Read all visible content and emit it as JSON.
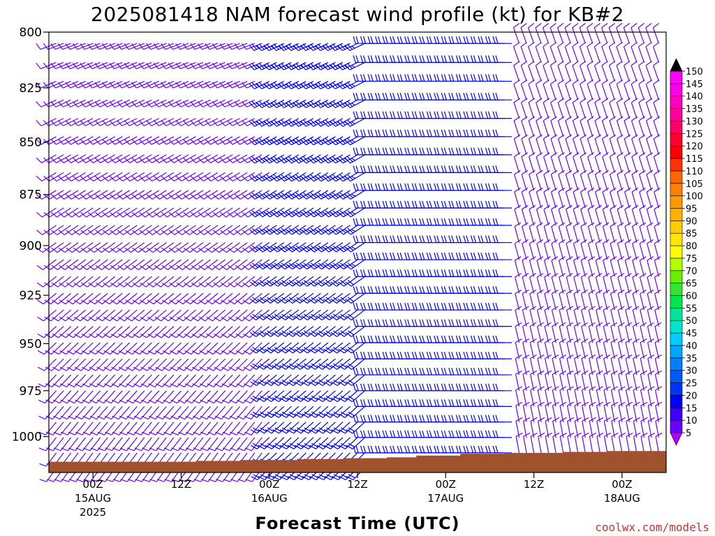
{
  "chart_data": {
    "type": "wind-barb-profile",
    "title": "2025081418 NAM forecast wind profile (kt) for KB#2",
    "xlabel": "Forecast Time (UTC)",
    "ylabel": "",
    "y_ticks": [
      800,
      825,
      850,
      875,
      900,
      925,
      950,
      975,
      1000
    ],
    "ylim": [
      800,
      1020
    ],
    "x_ticks": [
      {
        "hour": 6,
        "label": "00Z",
        "sub": "15AUG",
        "sub2": "2025"
      },
      {
        "hour": 18,
        "label": "12Z",
        "sub": "",
        "sub2": ""
      },
      {
        "hour": 30,
        "label": "00Z",
        "sub": "16AUG",
        "sub2": ""
      },
      {
        "hour": 42,
        "label": "12Z",
        "sub": "",
        "sub2": ""
      },
      {
        "hour": 54,
        "label": "00Z",
        "sub": "17AUG",
        "sub2": ""
      },
      {
        "hour": 66,
        "label": "12Z",
        "sub": "",
        "sub2": ""
      },
      {
        "hour": 78,
        "label": "00Z",
        "sub": "18AUG",
        "sub2": ""
      }
    ],
    "xlim": [
      0,
      84
    ],
    "colorbar": {
      "levels": [
        5,
        10,
        15,
        20,
        25,
        30,
        35,
        40,
        45,
        50,
        55,
        60,
        65,
        70,
        75,
        80,
        85,
        90,
        95,
        100,
        105,
        110,
        115,
        120,
        125,
        130,
        135,
        140,
        145,
        150
      ],
      "colors": [
        "#8c00ff",
        "#6a00ff",
        "#3c00ff",
        "#0000ff",
        "#0033ff",
        "#0059ff",
        "#0080ff",
        "#00a6ff",
        "#00ccff",
        "#00e6cc",
        "#00e699",
        "#00e64d",
        "#33e633",
        "#66f000",
        "#b3ff00",
        "#ffff00",
        "#ffe600",
        "#ffcc00",
        "#ffb300",
        "#ff9900",
        "#ff8000",
        "#ff6600",
        "#ff3300",
        "#ff0000",
        "#ff0033",
        "#ff0066",
        "#ff0099",
        "#ff00bf",
        "#ff00e6",
        "#ff00ff"
      ],
      "under_color": "#b400ff",
      "over_color": "#000000"
    },
    "terrain_pressure": [
      {
        "hour": 0,
        "p": 1014
      },
      {
        "hour": 10,
        "p": 1014
      },
      {
        "hour": 20,
        "p": 1013.5
      },
      {
        "hour": 26,
        "p": 1013
      },
      {
        "hour": 34,
        "p": 1012.5
      },
      {
        "hour": 40,
        "p": 1012
      },
      {
        "hour": 46,
        "p": 1011.5
      },
      {
        "hour": 50,
        "p": 1010.5
      },
      {
        "hour": 56,
        "p": 1009.5
      },
      {
        "hour": 62,
        "p": 1009
      },
      {
        "hour": 70,
        "p": 1008.5
      },
      {
        "hour": 76,
        "p": 1008
      },
      {
        "hour": 84,
        "p": 1008
      }
    ],
    "terrain_color": "#a0522d",
    "wind_regimes": [
      {
        "from_hour": 0,
        "to_hour": 30,
        "low_speed_kt": 12,
        "high_speed_kt": 10,
        "dir_low_deg": 215,
        "dir_high_deg": 250
      },
      {
        "from_hour": 30,
        "to_hour": 44,
        "low_speed_kt": 20,
        "high_speed_kt": 25,
        "dir_low_deg": 225,
        "dir_high_deg": 245
      },
      {
        "from_hour": 44,
        "to_hour": 64,
        "low_speed_kt": 22,
        "high_speed_kt": 20,
        "dir_low_deg": 270,
        "dir_high_deg": 270
      },
      {
        "from_hour": 64,
        "to_hour": 84,
        "low_speed_kt": 10,
        "high_speed_kt": 10,
        "dir_low_deg": 350,
        "dir_high_deg": 340
      }
    ]
  },
  "credit": "coolwx.com/models"
}
